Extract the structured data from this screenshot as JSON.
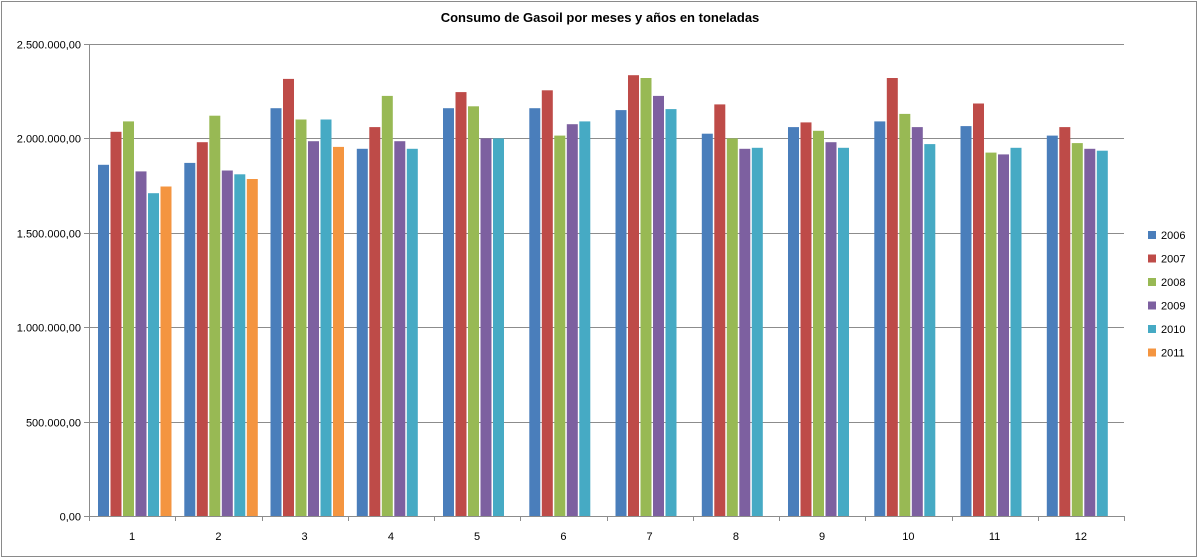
{
  "chart_data": {
    "type": "bar",
    "title": "Consumo de Gasoil por meses y años en toneladas",
    "xlabel": "",
    "ylabel": "",
    "ylim": [
      0,
      2500000
    ],
    "yticks": [
      0,
      500000,
      1000000,
      1500000,
      2000000,
      2500000
    ],
    "ytick_labels": [
      "0,00",
      "500.000,00",
      "1.000.000,00",
      "1.500.000,00",
      "2.000.000,00",
      "2.500.000,00"
    ],
    "grid": true,
    "legend_position": "right",
    "categories": [
      "1",
      "2",
      "3",
      "4",
      "5",
      "6",
      "7",
      "8",
      "9",
      "10",
      "11",
      "12"
    ],
    "series": [
      {
        "name": "2006",
        "color": "#4a7ebb",
        "values": [
          1860000,
          1870000,
          2160000,
          1945000,
          2160000,
          2160000,
          2150000,
          2025000,
          2060000,
          2090000,
          2065000,
          2015000
        ]
      },
      {
        "name": "2007",
        "color": "#be4b48",
        "values": [
          2035000,
          1980000,
          2315000,
          2060000,
          2245000,
          2255000,
          2335000,
          2180000,
          2085000,
          2320000,
          2185000,
          2060000
        ]
      },
      {
        "name": "2008",
        "color": "#98b954",
        "values": [
          2090000,
          2120000,
          2100000,
          2225000,
          2170000,
          2015000,
          2320000,
          2000000,
          2040000,
          2130000,
          1925000,
          1975000
        ]
      },
      {
        "name": "2009",
        "color": "#7d60a0",
        "values": [
          1825000,
          1830000,
          1985000,
          1985000,
          2000000,
          2075000,
          2225000,
          1945000,
          1980000,
          2060000,
          1915000,
          1945000
        ]
      },
      {
        "name": "2010",
        "color": "#46aac4",
        "values": [
          1710000,
          1810000,
          2100000,
          1945000,
          2000000,
          2090000,
          2155000,
          1950000,
          1950000,
          1970000,
          1950000,
          1935000
        ]
      },
      {
        "name": "2011",
        "color": "#f49540",
        "values": [
          1745000,
          1785000,
          1955000,
          null,
          null,
          null,
          null,
          null,
          null,
          null,
          null,
          null
        ]
      }
    ]
  }
}
